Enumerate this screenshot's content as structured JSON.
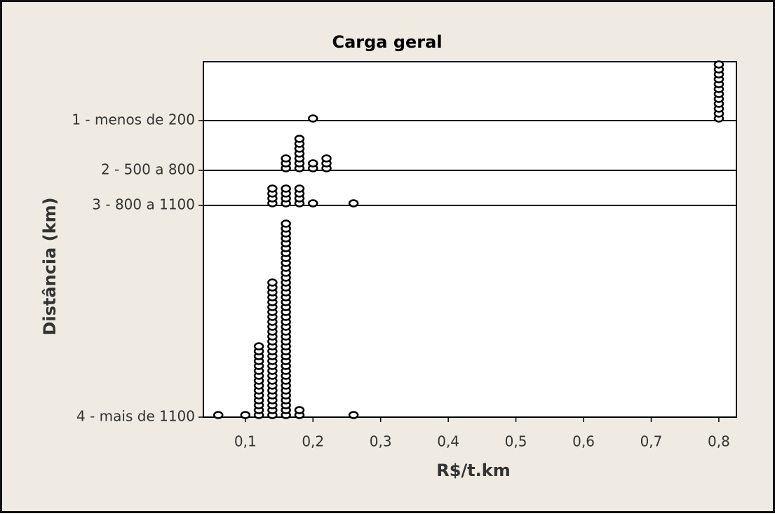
{
  "chart_data": {
    "type": "dotplot",
    "title": "Carga geral",
    "xlabel": "R$/t.km",
    "ylabel": "Distância (km)",
    "xlim": [
      0.038,
      0.826
    ],
    "xticks": [
      {
        "value": 0.1,
        "label": "0,1"
      },
      {
        "value": 0.2,
        "label": "0,2"
      },
      {
        "value": 0.3,
        "label": "0,3"
      },
      {
        "value": 0.4,
        "label": "0,4"
      },
      {
        "value": 0.5,
        "label": "0,5"
      },
      {
        "value": 0.6,
        "label": "0,6"
      },
      {
        "value": 0.7,
        "label": "0,7"
      },
      {
        "value": 0.8,
        "label": "0,8"
      }
    ],
    "color": "#000000",
    "series": [
      {
        "name": "1 - menos de 200",
        "x": [
          0.2,
          0.8
        ],
        "values": [
          1,
          12
        ]
      },
      {
        "name": "2 - 500 a 800",
        "x": [
          0.16,
          0.18,
          0.2,
          0.22
        ],
        "values": [
          3,
          7,
          2,
          3
        ]
      },
      {
        "name": "3 - 800 a 1100",
        "x": [
          0.14,
          0.16,
          0.18,
          0.2,
          0.26
        ],
        "values": [
          4,
          4,
          4,
          1,
          1
        ]
      },
      {
        "name": "4 - mais de 1100",
        "x": [
          0.06,
          0.1,
          0.12,
          0.14,
          0.16,
          0.18,
          0.26
        ],
        "values": [
          1,
          1,
          15,
          28,
          40,
          2,
          1
        ]
      }
    ]
  }
}
